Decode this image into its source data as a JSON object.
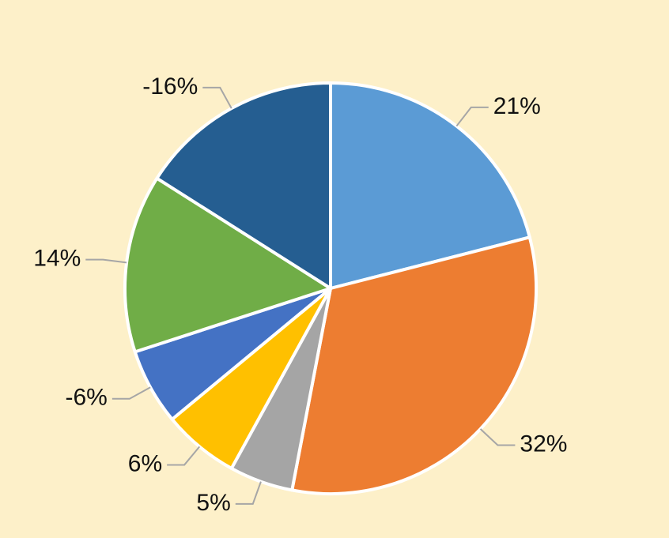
{
  "chart_data": {
    "type": "pie",
    "values": [
      21,
      32,
      5,
      6,
      -6,
      14,
      -16
    ],
    "value_labels": [
      "21%",
      "32%",
      "5%",
      "6%",
      "-6%",
      "14%",
      "-16%"
    ],
    "colors": [
      "#5b9bd5",
      "#ed7d31",
      "#a5a5a5",
      "#ffc000",
      "#4472c4",
      "#70ad47",
      "#255e91"
    ]
  }
}
